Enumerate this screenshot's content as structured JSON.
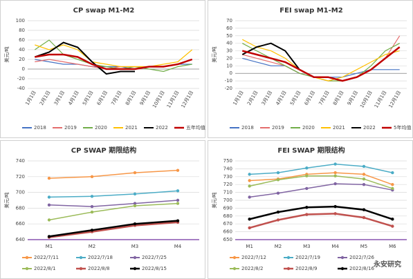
{
  "chart_data": [
    {
      "type": "line",
      "title": "CP swap M1-M2",
      "y_label": "美元/吨",
      "categories": [
        "1月1日",
        "2月1日",
        "3月1日",
        "4月1日",
        "5月1日",
        "6月1日",
        "7月1日",
        "8月1日",
        "9月1日",
        "10月1日",
        "11月1日",
        "12月1日"
      ],
      "ylim": [
        -40,
        100
      ],
      "yticks": [
        -40,
        -20,
        0,
        20,
        40,
        60,
        80,
        100
      ],
      "grid": true,
      "legend": "bottom",
      "rotate_x": true,
      "series": [
        {
          "name": "2018",
          "color": "#4472c4",
          "width": 1.2,
          "values": [
            20,
            15,
            10,
            10,
            5,
            5,
            5,
            0,
            5,
            5,
            10,
            10
          ]
        },
        {
          "name": "2019",
          "color": "#e46c6c",
          "width": 1.2,
          "values": [
            15,
            20,
            15,
            10,
            5,
            0,
            5,
            5,
            5,
            5,
            10,
            20
          ]
        },
        {
          "name": "2020",
          "color": "#70ad47",
          "width": 1.2,
          "values": [
            40,
            60,
            30,
            20,
            10,
            5,
            0,
            5,
            0,
            -5,
            5,
            10
          ]
        },
        {
          "name": "2021",
          "color": "#ffc000",
          "width": 1.2,
          "values": [
            50,
            40,
            50,
            40,
            15,
            10,
            5,
            5,
            5,
            10,
            15,
            40
          ]
        },
        {
          "name": "2022",
          "color": "#000000",
          "width": 2,
          "values": [
            25,
            35,
            55,
            45,
            15,
            -10,
            -5,
            -5,
            null,
            null,
            null,
            null
          ]
        },
        {
          "name": "五年均值",
          "color": "#c00000",
          "width": 2.5,
          "values": [
            25,
            30,
            30,
            25,
            10,
            0,
            0,
            0,
            5,
            5,
            10,
            20
          ]
        }
      ]
    },
    {
      "type": "line",
      "title": "FEI swap M1-M2",
      "y_label": "美元/吨",
      "categories": [
        "1月1日",
        "2月1日",
        "3月1日",
        "4月1日",
        "5月1日",
        "6月1日",
        "7月1日",
        "8月1日",
        "9月1日",
        "10月1日",
        "11月1日",
        "12月1日"
      ],
      "ylim": [
        -20,
        70
      ],
      "yticks": [
        -20,
        -10,
        0,
        10,
        20,
        30,
        40,
        50,
        60,
        70
      ],
      "grid": true,
      "legend": "bottom",
      "rotate_x": true,
      "series": [
        {
          "name": "2018",
          "color": "#4472c4",
          "width": 1.2,
          "values": [
            20,
            15,
            10,
            10,
            0,
            -5,
            -5,
            -5,
            0,
            5,
            5,
            5
          ]
        },
        {
          "name": "2019",
          "color": "#e46c6c",
          "width": 1.2,
          "values": [
            25,
            20,
            15,
            10,
            0,
            -5,
            -10,
            -10,
            -5,
            5,
            20,
            50
          ]
        },
        {
          "name": "2020",
          "color": "#70ad47",
          "width": 1.2,
          "values": [
            40,
            30,
            20,
            10,
            0,
            -5,
            -10,
            -10,
            -5,
            10,
            30,
            40
          ]
        },
        {
          "name": "2021",
          "color": "#ffc000",
          "width": 1.2,
          "values": [
            45,
            35,
            30,
            20,
            5,
            -5,
            -10,
            -5,
            5,
            15,
            25,
            30
          ]
        },
        {
          "name": "2022",
          "color": "#000000",
          "width": 2,
          "values": [
            25,
            35,
            40,
            30,
            5,
            -5,
            -5,
            -10,
            null,
            null,
            null,
            null
          ]
        },
        {
          "name": "5年均值",
          "color": "#c00000",
          "width": 2.5,
          "values": [
            30,
            25,
            20,
            15,
            5,
            -5,
            -5,
            -10,
            -5,
            5,
            20,
            35
          ]
        }
      ]
    },
    {
      "type": "line",
      "title": "CP SWAP 期限结构",
      "y_label": "美元/吨",
      "categories": [
        "M1",
        "M2",
        "M3",
        "M4"
      ],
      "ylim": [
        640,
        740
      ],
      "yticks": [
        640,
        660,
        680,
        700,
        720,
        740
      ],
      "grid": true,
      "legend": "bottom",
      "markers": true,
      "series": [
        {
          "name": "2022/7/11",
          "color": "#f79646",
          "width": 1.5,
          "values": [
            718,
            720,
            725,
            728
          ]
        },
        {
          "name": "2022/7/18",
          "color": "#4bacc6",
          "width": 1.5,
          "values": [
            694,
            695,
            698,
            702
          ]
        },
        {
          "name": "2022/7/25",
          "color": "#8064a2",
          "width": 1.5,
          "values": [
            684,
            682,
            686,
            690
          ]
        },
        {
          "name": "2022/8/1",
          "color": "#9bbb59",
          "width": 1.5,
          "values": [
            665,
            675,
            683,
            686
          ]
        },
        {
          "name": "2022/8/8",
          "color": "#c0504d",
          "width": 2.5,
          "values": [
            643,
            650,
            658,
            662
          ]
        },
        {
          "name": "2022/8/15",
          "color": "#000000",
          "width": 2.5,
          "values": [
            644,
            652,
            660,
            664
          ]
        }
      ]
    },
    {
      "type": "line",
      "title": "FEI SWAP  期限结构",
      "y_label": "美元/吨",
      "categories": [
        "M1",
        "M2",
        "M3",
        "M4",
        "M5",
        "M6"
      ],
      "ylim": [
        650,
        750
      ],
      "yticks": [
        650,
        660,
        670,
        680,
        690,
        700,
        710,
        720,
        730,
        740,
        750
      ],
      "grid": true,
      "legend": "bottom",
      "markers": true,
      "series": [
        {
          "name": "2022/7/12",
          "color": "#f79646",
          "width": 1.5,
          "values": [
            725,
            727,
            733,
            735,
            733,
            720
          ]
        },
        {
          "name": "2022/7/19",
          "color": "#4bacc6",
          "width": 1.5,
          "values": [
            733,
            735,
            741,
            746,
            743,
            735
          ]
        },
        {
          "name": "2022/7/26",
          "color": "#8064a2",
          "width": 1.5,
          "values": [
            704,
            709,
            715,
            721,
            720,
            713
          ]
        },
        {
          "name": "2022/8/2",
          "color": "#9bbb59",
          "width": 1.5,
          "values": [
            718,
            726,
            731,
            731,
            727,
            715
          ]
        },
        {
          "name": "2022/8/9",
          "color": "#c0504d",
          "width": 2.5,
          "values": [
            665,
            675,
            682,
            683,
            678,
            667
          ]
        },
        {
          "name": "2022/8/16",
          "color": "#000000",
          "width": 2.5,
          "values": [
            676,
            685,
            691,
            692,
            688,
            676
          ]
        }
      ]
    }
  ],
  "watermark": "永安研究"
}
